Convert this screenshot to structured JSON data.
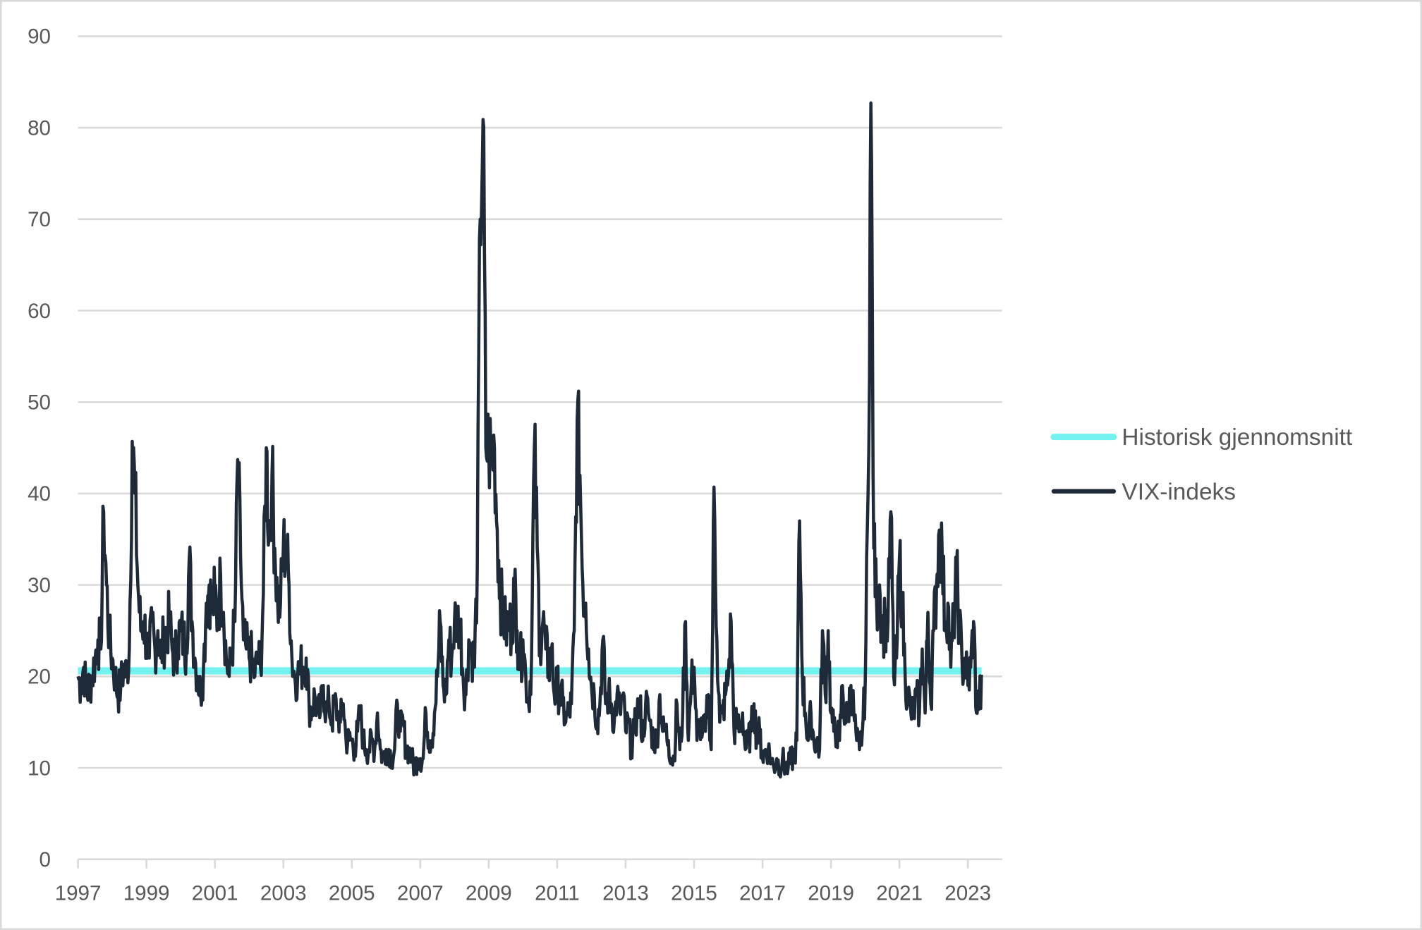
{
  "chart_data": {
    "type": "line",
    "title": "",
    "xlabel": "",
    "ylabel": "",
    "ylim": [
      0,
      90
    ],
    "xlim": [
      1997,
      2024
    ],
    "y_ticks": [
      "0",
      "10",
      "20",
      "30",
      "40",
      "50",
      "60",
      "70",
      "80",
      "90"
    ],
    "x_ticks": [
      "1997",
      "1999",
      "2001",
      "2003",
      "2005",
      "2007",
      "2009",
      "2011",
      "2013",
      "2015",
      "2017",
      "2019",
      "2021",
      "2023"
    ],
    "grid": true,
    "legend_position": "right",
    "series": [
      {
        "name": "Historisk gjennomsnitt",
        "color": "#73f2f0",
        "start": 1997.0,
        "end": 2023.4,
        "value": 20.6
      },
      {
        "name": "VIX-indeks",
        "color": "#1e2a38",
        "start": 1997.0,
        "frequency": "monthly",
        "values": [
          20,
          19,
          21,
          18,
          19,
          20,
          22,
          24,
          23,
          38,
          30,
          24,
          22,
          20,
          18,
          19,
          21,
          20,
          23,
          45.7,
          40,
          30,
          25,
          26,
          24,
          22,
          26,
          23,
          25,
          22,
          24,
          25,
          26,
          23,
          22,
          24,
          25,
          24,
          23,
          33,
          26,
          22,
          20,
          18,
          21,
          28,
          30,
          27,
          29,
          26,
          31,
          27,
          22,
          20,
          23,
          26,
          43.7,
          33,
          24,
          23,
          22,
          22,
          20,
          22,
          21,
          29,
          45,
          35,
          42,
          34,
          28,
          28,
          34,
          34,
          30,
          22,
          20,
          20,
          21,
          21,
          22,
          17,
          16,
          18,
          16,
          16,
          19,
          16,
          17,
          15,
          17,
          16,
          15,
          17,
          13,
          13,
          13,
          12,
          14,
          16,
          13,
          12,
          12,
          13,
          12,
          16,
          12,
          11,
          12,
          12,
          11,
          12,
          17,
          14,
          15,
          12,
          12,
          11,
          10,
          11,
          11,
          11,
          16,
          13,
          13,
          16,
          20,
          26,
          19,
          18,
          24,
          22,
          26,
          26,
          26,
          20,
          18,
          24,
          23,
          21,
          32,
          70,
          80.9,
          45,
          45,
          44,
          45,
          36,
          29,
          27,
          25,
          26,
          25,
          30,
          25,
          21,
          24,
          20,
          17,
          22,
          45,
          34,
          23,
          26,
          23,
          21,
          23,
          18,
          19,
          18,
          17,
          15,
          16,
          17,
          25,
          48,
          42,
          30,
          28,
          23,
          19,
          18,
          15,
          17,
          24,
          17,
          18,
          17,
          15,
          18,
          16,
          18,
          14,
          15,
          12,
          14,
          16,
          17,
          13,
          17,
          16,
          14,
          13,
          13,
          18,
          14,
          14,
          13,
          11,
          11,
          17,
          12,
          16,
          26,
          13,
          19,
          21,
          13,
          15,
          14,
          14,
          18,
          12,
          40.7,
          24,
          15,
          16,
          18,
          20,
          26,
          14,
          15,
          14,
          16,
          12,
          13,
          14,
          17,
          13,
          14,
          11,
          12,
          12,
          11,
          10,
          11,
          10,
          11,
          10,
          10,
          11,
          11,
          13,
          37,
          20,
          16,
          13,
          16,
          13,
          13,
          12,
          25,
          18,
          25,
          16,
          14,
          14,
          13,
          19,
          15,
          16,
          19,
          16,
          13,
          12,
          14,
          19,
          40,
          82.7,
          34,
          28,
          30,
          25,
          26,
          26,
          38,
          20,
          22,
          33,
          28,
          20,
          18,
          16,
          16,
          18,
          16,
          23,
          16,
          27,
          17,
          25,
          30,
          36,
          33,
          26,
          28,
          21,
          26,
          31,
          26,
          21,
          22,
          19,
          21,
          26,
          16,
          18
        ]
      }
    ]
  }
}
